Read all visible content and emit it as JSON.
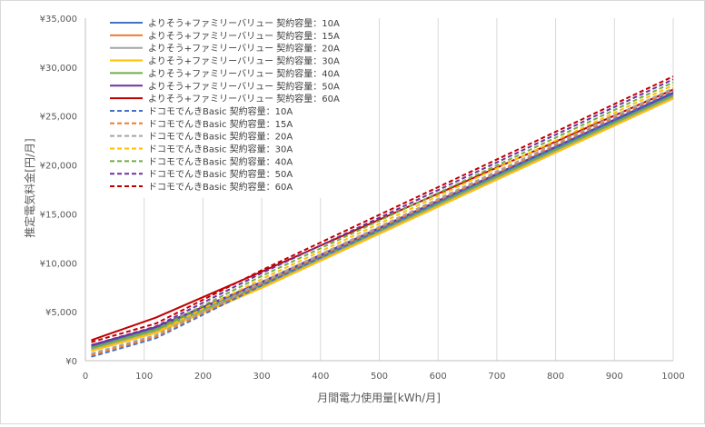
{
  "chart_data": {
    "type": "line",
    "xlabel": "月間電力使用量[kWh/月]",
    "ylabel": "推定電気料金[円/月]",
    "xlim": [
      0,
      1000
    ],
    "ylim": [
      0,
      35000
    ],
    "x_ticks": [
      0,
      100,
      200,
      300,
      400,
      500,
      600,
      700,
      800,
      900,
      1000
    ],
    "x_tick_labels": [
      "0",
      "100",
      "200",
      "300",
      "400",
      "500",
      "600",
      "700",
      "800",
      "900",
      "1000"
    ],
    "y_ticks": [
      0,
      5000,
      10000,
      15000,
      20000,
      25000,
      30000,
      35000
    ],
    "y_tick_labels": [
      "¥0",
      "¥5,000",
      "¥10,000",
      "¥15,000",
      "¥20,000",
      "¥25,000",
      "¥30,000",
      "¥35,000"
    ],
    "grid": "vertical",
    "legend": "top-left",
    "x": [
      10,
      120,
      300,
      1000
    ],
    "series": [
      {
        "name": "よりそう+ファミリーバリュー 契約容量：10A",
        "color": "#4472c4",
        "dash": false,
        "values": [
          1430,
          3300,
          7900,
          27250
        ]
      },
      {
        "name": "よりそう+ファミリーバリュー 契約容量：15A",
        "color": "#ed7d31",
        "dash": false,
        "values": [
          1000,
          2860,
          7450,
          26800
        ]
      },
      {
        "name": "よりそう+ファミリーバリュー 契約容量：20A",
        "color": "#a5a5a5",
        "dash": false,
        "values": [
          1140,
          3000,
          7600,
          26950
        ]
      },
      {
        "name": "よりそう+ファミリーバリュー 契約容量：30A",
        "color": "#ffc000",
        "dash": false,
        "values": [
          1000,
          2860,
          7450,
          26800
        ]
      },
      {
        "name": "よりそう+ファミリーバリュー 契約容量：40A",
        "color": "#70ad47",
        "dash": false,
        "values": [
          1290,
          3150,
          7750,
          27100
        ]
      },
      {
        "name": "よりそう+ファミリーバリュー 契約容量：50A",
        "color": "#7030a0",
        "dash": false,
        "values": [
          1580,
          3440,
          8050,
          27400
        ]
      },
      {
        "name": "よりそう+ファミリーバリュー 契約容量：60A",
        "color": "#c00000",
        "dash": false,
        "values": [
          2100,
          4400,
          9100,
          27700
        ]
      },
      {
        "name": "ドコモでんきBasic 契約容量：10A",
        "color": "#4472c4",
        "dash": true,
        "values": [
          400,
          2300,
          7700,
          27500
        ]
      },
      {
        "name": "ドコモでんきBasic 契約容量：15A",
        "color": "#ed7d31",
        "dash": true,
        "values": [
          560,
          2460,
          7900,
          27700
        ]
      },
      {
        "name": "ドコモでんきBasic 契約容量：20A",
        "color": "#a5a5a5",
        "dash": true,
        "values": [
          720,
          2620,
          8050,
          27850
        ]
      },
      {
        "name": "ドコモでんきBasic 契約容量：30A",
        "color": "#ffc000",
        "dash": true,
        "values": [
          1000,
          2900,
          8350,
          28150
        ]
      },
      {
        "name": "ドコモでんきBasic 契約容量：40A",
        "color": "#70ad47",
        "dash": true,
        "values": [
          1300,
          3200,
          8650,
          28450
        ]
      },
      {
        "name": "ドコモでんきBasic 契約容量：50A",
        "color": "#7030a0",
        "dash": true,
        "values": [
          1600,
          3500,
          8950,
          28750
        ]
      },
      {
        "name": "ドコモでんきBasic 契約容量：60A",
        "color": "#c00000",
        "dash": true,
        "values": [
          1900,
          3800,
          9250,
          29050
        ]
      }
    ]
  }
}
